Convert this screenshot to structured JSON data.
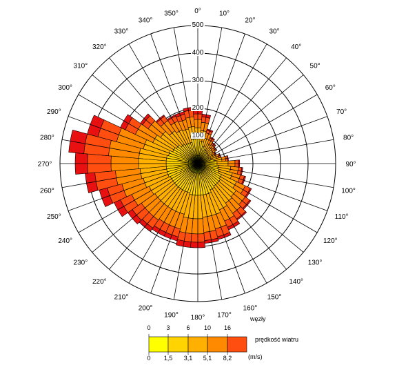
{
  "chart_data": {
    "type": "wind-rose",
    "direction_labels": [
      "0°",
      "10°",
      "20°",
      "30°",
      "40°",
      "50°",
      "60°",
      "70°",
      "80°",
      "90°",
      "100°",
      "110°",
      "120°",
      "130°",
      "140°",
      "150°",
      "160°",
      "170°",
      "180°",
      "190°",
      "200°",
      "210°",
      "220°",
      "230°",
      "240°",
      "250°",
      "260°",
      "270°",
      "280°",
      "290°",
      "300°",
      "310°",
      "320°",
      "330°",
      "340°",
      "350°"
    ],
    "radial_ticks": [
      100,
      200,
      300,
      400,
      500
    ],
    "rmax": 500,
    "sector_step_deg": 10,
    "bin_colors": [
      "#ffff00",
      "#ffd400",
      "#ffb000",
      "#ff8a00",
      "#ff4e10",
      "#e81010"
    ],
    "sectors": [
      {
        "dir": 0,
        "b": [
          30,
          60,
          40,
          30,
          20,
          15
        ]
      },
      {
        "dir": 10,
        "b": [
          30,
          50,
          40,
          30,
          20,
          10
        ]
      },
      {
        "dir": 20,
        "b": [
          25,
          40,
          30,
          20,
          10,
          5
        ]
      },
      {
        "dir": 30,
        "b": [
          20,
          35,
          25,
          15,
          8,
          4
        ]
      },
      {
        "dir": 40,
        "b": [
          20,
          30,
          22,
          12,
          6,
          3
        ]
      },
      {
        "dir": 50,
        "b": [
          20,
          28,
          20,
          10,
          5,
          2
        ]
      },
      {
        "dir": 60,
        "b": [
          18,
          25,
          18,
          8,
          4,
          2
        ]
      },
      {
        "dir": 70,
        "b": [
          20,
          30,
          20,
          10,
          5,
          2
        ]
      },
      {
        "dir": 80,
        "b": [
          22,
          38,
          28,
          14,
          7,
          3
        ]
      },
      {
        "dir": 90,
        "b": [
          25,
          45,
          40,
          25,
          12,
          5
        ]
      },
      {
        "dir": 100,
        "b": [
          25,
          50,
          45,
          28,
          12,
          4
        ]
      },
      {
        "dir": 110,
        "b": [
          25,
          55,
          50,
          30,
          15,
          5
        ]
      },
      {
        "dir": 120,
        "b": [
          30,
          65,
          60,
          35,
          20,
          5
        ]
      },
      {
        "dir": 130,
        "b": [
          30,
          70,
          70,
          40,
          20,
          5
        ]
      },
      {
        "dir": 140,
        "b": [
          30,
          70,
          75,
          45,
          25,
          5
        ]
      },
      {
        "dir": 150,
        "b": [
          30,
          75,
          80,
          45,
          25,
          10
        ]
      },
      {
        "dir": 160,
        "b": [
          35,
          80,
          80,
          50,
          30,
          10
        ]
      },
      {
        "dir": 170,
        "b": [
          35,
          80,
          80,
          55,
          30,
          10
        ]
      },
      {
        "dir": 180,
        "b": [
          35,
          80,
          85,
          55,
          30,
          20
        ]
      },
      {
        "dir": 190,
        "b": [
          35,
          80,
          85,
          55,
          30,
          20
        ]
      },
      {
        "dir": 200,
        "b": [
          35,
          75,
          80,
          55,
          30,
          15
        ]
      },
      {
        "dir": 210,
        "b": [
          35,
          75,
          80,
          55,
          30,
          15
        ]
      },
      {
        "dir": 220,
        "b": [
          35,
          75,
          80,
          60,
          35,
          15
        ]
      },
      {
        "dir": 230,
        "b": [
          35,
          75,
          80,
          60,
          40,
          20
        ]
      },
      {
        "dir": 240,
        "b": [
          35,
          75,
          85,
          70,
          45,
          25
        ]
      },
      {
        "dir": 250,
        "b": [
          35,
          80,
          90,
          80,
          55,
          30
        ]
      },
      {
        "dir": 260,
        "b": [
          35,
          80,
          95,
          90,
          75,
          35
        ]
      },
      {
        "dir": 270,
        "b": [
          35,
          80,
          100,
          100,
          85,
          45
        ]
      },
      {
        "dir": 280,
        "b": [
          35,
          80,
          100,
          110,
          90,
          55
        ]
      },
      {
        "dir": 290,
        "b": [
          35,
          75,
          95,
          100,
          70,
          40
        ]
      },
      {
        "dir": 300,
        "b": [
          30,
          70,
          80,
          70,
          40,
          20
        ]
      },
      {
        "dir": 310,
        "b": [
          30,
          65,
          70,
          55,
          25,
          10
        ]
      },
      {
        "dir": 320,
        "b": [
          25,
          60,
          60,
          45,
          20,
          5
        ]
      },
      {
        "dir": 330,
        "b": [
          25,
          55,
          55,
          35,
          20,
          5
        ]
      },
      {
        "dir": 340,
        "b": [
          25,
          55,
          50,
          35,
          20,
          10
        ]
      },
      {
        "dir": 350,
        "b": [
          30,
          60,
          45,
          35,
          25,
          10
        ]
      }
    ]
  },
  "legend": {
    "knots_title": "węzły",
    "knots_ticks": [
      "0",
      "3",
      "6",
      "10",
      "16"
    ],
    "speed_title": "prędkość wiatru",
    "ms_ticks": [
      "0",
      "1,5",
      "3,1",
      "5,1",
      "8,2"
    ],
    "ms_unit": "(m/s)"
  }
}
